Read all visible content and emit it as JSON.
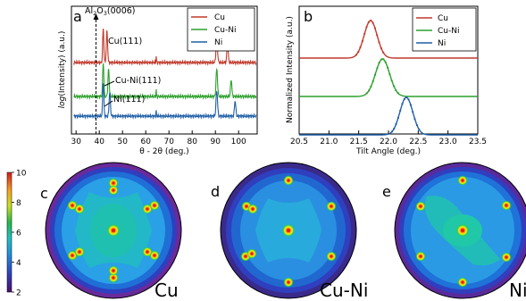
{
  "colors": {
    "Cu": "#c0392b",
    "Cu-Ni": "#2ca02c",
    "Ni": "#1f5fa8"
  },
  "chart_data": [
    {
      "panel": "a",
      "type": "line",
      "xlabel": "θ - 2θ (deg.)",
      "ylabel": "log(Intensity) (a.u.)",
      "xlim": [
        28,
        108
      ],
      "xticks": [
        30,
        40,
        50,
        60,
        70,
        80,
        90,
        100
      ],
      "series": [
        {
          "name": "Cu",
          "offset": 2.0,
          "peaks": [
            [
              41.7,
              0.35,
              1.0
            ],
            [
              43.3,
              0.4,
              0.9
            ],
            [
              64.5,
              0.12,
              0.2
            ],
            [
              90.6,
              0.45,
              0.75
            ],
            [
              95.2,
              0.4,
              0.6
            ]
          ]
        },
        {
          "name": "Cu-Ni",
          "offset": 1.0,
          "peaks": [
            [
              41.7,
              0.35,
              1.0
            ],
            [
              44.0,
              0.4,
              0.8
            ],
            [
              64.5,
              0.12,
              0.2
            ],
            [
              90.6,
              0.45,
              0.8
            ],
            [
              96.8,
              0.4,
              0.5
            ]
          ]
        },
        {
          "name": "Ni",
          "offset": 0.0,
          "peaks": [
            [
              41.7,
              0.35,
              1.0
            ],
            [
              44.5,
              0.4,
              0.7
            ],
            [
              64.5,
              0.12,
              0.15
            ],
            [
              90.6,
              0.45,
              0.75
            ],
            [
              98.5,
              0.4,
              0.45
            ]
          ]
        }
      ],
      "annotations": [
        "Al2O3(0006)",
        "Cu(111)",
        "Cu-Ni(111)",
        "Ni(111)"
      ],
      "legend": "top-right"
    },
    {
      "panel": "b",
      "type": "line",
      "xlabel": "Tilt Angle (deg.)",
      "ylabel": "Normalized Intensity (a.u.)",
      "xlim": [
        20.5,
        23.5
      ],
      "xticks": [
        20.5,
        21.0,
        21.5,
        22.0,
        22.5,
        23.0,
        23.5
      ],
      "series": [
        {
          "name": "Cu",
          "center": 21.7,
          "width": 0.11,
          "offset": 2
        },
        {
          "name": "Cu-Ni",
          "center": 21.9,
          "width": 0.12,
          "offset": 1
        },
        {
          "name": "Ni",
          "center": 22.3,
          "width": 0.11,
          "offset": 0
        }
      ],
      "legend": "top-right"
    },
    {
      "type": "heatmap",
      "colorbar_ticks": [
        2,
        4,
        6,
        8,
        10
      ],
      "colorbar_range": [
        2,
        10
      ],
      "pole_figures": [
        {
          "panel": "c",
          "label": "Cu"
        },
        {
          "panel": "d",
          "label": "Cu-Ni"
        },
        {
          "panel": "e",
          "label": "Ni"
        }
      ]
    }
  ],
  "panel_labels": {
    "a": "a",
    "b": "b",
    "c": "c",
    "d": "d",
    "e": "e"
  },
  "annotations": {
    "al2o3_pre": "Al",
    "al2o3_sub1": "2",
    "al2o3_mid": "O",
    "al2o3_sub2": "3",
    "al2o3_post": "(0006)",
    "cu111": "Cu(111)",
    "cuni111": "Cu-Ni(111)",
    "ni111": "Ni(111)"
  },
  "axes": {
    "a_xlabel": "θ - 2θ (deg.)",
    "a_ylabel_log": "log",
    "a_ylabel_rest": "(Intensity) (a.u.)",
    "b_xlabel": "Tilt Angle (deg.)",
    "b_ylabel": "Normalized Intensity (a.u.)",
    "a_ticks": [
      "30",
      "40",
      "50",
      "60",
      "70",
      "80",
      "90",
      "100"
    ],
    "b_ticks": [
      "20.5",
      "21.0",
      "21.5",
      "22.0",
      "22.5",
      "23.0",
      "23.5"
    ],
    "cbar_ticks": [
      "2",
      "4",
      "6",
      "8",
      "10"
    ]
  },
  "legend": [
    "Cu",
    "Cu-Ni",
    "Ni"
  ],
  "materials": [
    "Cu",
    "Cu-Ni",
    "Ni"
  ]
}
